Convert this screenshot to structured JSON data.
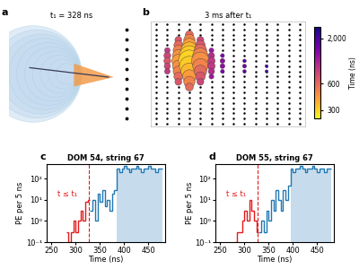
{
  "chart_data": [
    {
      "type": "diagram",
      "panel": "a",
      "title": "t₁ = 328 ns"
    },
    {
      "type": "scatter",
      "panel": "b",
      "title": "3 ms after t₁",
      "tick_labels": false,
      "xlim": [
        -0.5,
        13.5
      ],
      "ylim": [
        -0.5,
        19.5
      ],
      "dom_x": [
        0,
        1,
        2,
        3,
        4,
        5,
        6,
        7,
        8,
        9,
        10,
        11,
        12,
        13
      ],
      "dom_y": [
        0,
        1,
        2,
        3,
        4,
        5,
        6,
        7,
        8,
        9,
        10,
        11,
        12,
        13,
        14,
        15,
        16,
        17,
        18,
        19
      ],
      "x": [
        1,
        1,
        1,
        1,
        1,
        2,
        2,
        2,
        2,
        2,
        2,
        2,
        2,
        2,
        3,
        3,
        3,
        3,
        3,
        3,
        3,
        3,
        3,
        3,
        3,
        4,
        4,
        4,
        4,
        4,
        4,
        4,
        4,
        4,
        5,
        5,
        5,
        5,
        5,
        5,
        6,
        6,
        6,
        6,
        8,
        8,
        8,
        10,
        10
      ],
      "y": [
        14,
        13,
        12,
        11,
        10,
        16,
        15,
        14,
        13,
        12,
        11,
        10,
        9,
        8,
        17,
        16,
        15,
        14,
        13,
        12,
        11,
        10,
        9,
        8,
        7,
        16,
        15,
        14,
        13,
        12,
        11,
        10,
        9,
        8,
        14,
        13,
        12,
        11,
        10,
        9,
        13,
        12,
        11,
        10,
        12,
        11,
        10,
        11,
        10
      ],
      "sizes": [
        20,
        30,
        30,
        25,
        20,
        30,
        50,
        70,
        90,
        110,
        90,
        70,
        50,
        30,
        40,
        80,
        120,
        180,
        250,
        300,
        250,
        180,
        120,
        80,
        40,
        30,
        60,
        100,
        150,
        200,
        150,
        100,
        60,
        30,
        15,
        25,
        35,
        35,
        25,
        15,
        10,
        15,
        15,
        10,
        8,
        10,
        8,
        6,
        6
      ],
      "times": [
        900,
        800,
        700,
        800,
        900,
        700,
        600,
        500,
        450,
        420,
        450,
        500,
        600,
        700,
        600,
        500,
        420,
        350,
        310,
        300,
        310,
        350,
        420,
        500,
        600,
        800,
        700,
        600,
        500,
        450,
        500,
        600,
        700,
        800,
        1200,
        1000,
        900,
        900,
        1000,
        1200,
        1500,
        1300,
        1300,
        1500,
        1800,
        1600,
        1800,
        2200,
        2100
      ],
      "colorbar": {
        "label": "Time (ns)",
        "range": [
          240,
          2700
        ],
        "log": true,
        "ticks": [
          300,
          600,
          {
            "value": 2000,
            "label": "2,000"
          }
        ]
      }
    },
    {
      "type": "histogram",
      "panel": "c",
      "title": "DOM 54, string 67",
      "x_label": "Time (ns)",
      "y_label": "PE per 5 ns",
      "log": "y",
      "xlim": [
        240,
        485
      ],
      "ylim": [
        0.1,
        500
      ],
      "xticks": [
        250,
        300,
        350,
        400,
        450
      ],
      "yticks": [
        {
          "value": 0.1,
          "label": "10⁻¹"
        },
        {
          "value": 1,
          "label": "10⁰"
        },
        {
          "value": 10,
          "label": "10¹"
        },
        {
          "value": 100,
          "label": "10²"
        }
      ],
      "annotation": "t ≤ t₁",
      "vline": {
        "x": 328,
        "color": "#e41a1c",
        "line_style": "dashed"
      },
      "shade_from": 385,
      "series": [
        {
          "color": "#e41a1c",
          "bins": [
            280,
            285,
            290,
            295,
            300,
            305,
            310,
            315,
            320,
            325,
            330
          ],
          "values": [
            0.3,
            0.1,
            0.3,
            1,
            0.3,
            1,
            3,
            1,
            8,
            10
          ]
        },
        {
          "color": "#1f77b4",
          "bins": [
            330,
            335,
            340,
            345,
            350,
            355,
            360,
            365,
            370,
            375,
            380,
            385,
            390,
            395,
            400,
            405,
            410,
            415,
            420,
            425,
            430,
            435,
            440,
            445,
            450,
            455,
            460,
            465,
            470,
            475,
            480
          ],
          "values": [
            3,
            10,
            1,
            20,
            8,
            30,
            5,
            10,
            3,
            20,
            30,
            300,
            200,
            300,
            400,
            300,
            200,
            300,
            300,
            400,
            300,
            200,
            300,
            300,
            400,
            300,
            300,
            200,
            300,
            300
          ]
        }
      ]
    },
    {
      "type": "histogram",
      "panel": "d",
      "title": "DOM 55, string 67",
      "x_label": "Time (ns)",
      "y_label": "PE per 5 ns",
      "log": "y",
      "xlim": [
        240,
        485
      ],
      "ylim": [
        0.1,
        500
      ],
      "xticks": [
        250,
        300,
        350,
        400,
        450
      ],
      "yticks": [
        {
          "value": 0.1,
          "label": "10⁻¹"
        },
        {
          "value": 1,
          "label": "10⁰"
        },
        {
          "value": 10,
          "label": "10¹"
        },
        {
          "value": 100,
          "label": "10²"
        }
      ],
      "annotation": "t ≤ t₁",
      "vline": {
        "x": 328,
        "color": "#e41a1c",
        "line_style": "dashed"
      },
      "shade_from": 395,
      "series": [
        {
          "color": "#e41a1c",
          "bins": [
            280,
            285,
            290,
            295,
            300,
            305,
            310,
            315,
            320,
            325,
            330
          ],
          "values": [
            0.1,
            0.3,
            0.3,
            1,
            3,
            1,
            10,
            3,
            1,
            0.3
          ]
        },
        {
          "color": "#1f77b4",
          "bins": [
            330,
            335,
            340,
            345,
            350,
            355,
            360,
            365,
            370,
            375,
            380,
            385,
            390,
            395,
            400,
            405,
            410,
            415,
            420,
            425,
            430,
            435,
            440,
            445,
            450,
            455,
            460,
            465,
            470,
            475,
            480
          ],
          "values": [
            0.3,
            1,
            0.3,
            3,
            1,
            10,
            3,
            30,
            10,
            3,
            30,
            10,
            50,
            300,
            200,
            300,
            300,
            400,
            300,
            200,
            300,
            300,
            400,
            300,
            200,
            300,
            300,
            200,
            300,
            300
          ]
        }
      ]
    }
  ]
}
